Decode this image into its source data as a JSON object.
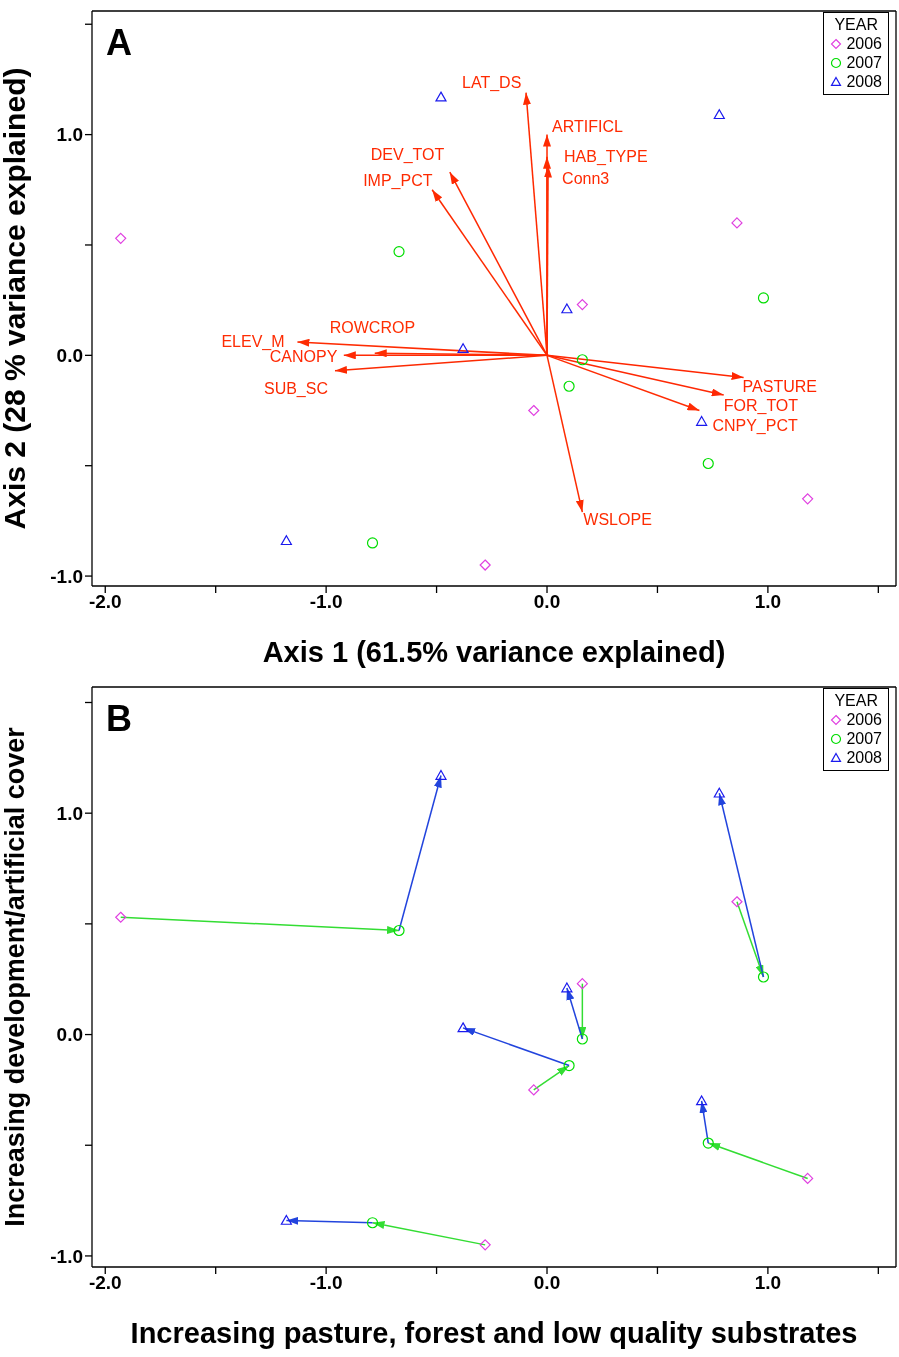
{
  "chart_data": [
    {
      "type": "scatter",
      "title": "A",
      "xlabel": "Axis 1 (61.5% variance explained)",
      "ylabel": "Axis 2 (28 % variance explained)",
      "legend_title": "YEAR",
      "legend": "top right",
      "grid": false,
      "xlim": [
        -2.06,
        1.58
      ],
      "ylim": [
        -1.045,
        1.56
      ],
      "xticks": [
        {
          "value": -2,
          "label": "-2.0"
        },
        {
          "value": -1.5,
          "label": null
        },
        {
          "value": -1,
          "label": "-1.0"
        },
        {
          "value": -0.5,
          "label": null
        },
        {
          "value": 0,
          "label": "0.0"
        },
        {
          "value": 0.5,
          "label": null
        },
        {
          "value": 1,
          "label": "1.0"
        },
        {
          "value": 1.5,
          "label": null
        }
      ],
      "yticks": [
        {
          "value": -1,
          "label": "-1.0"
        },
        {
          "value": -0.5,
          "label": null
        },
        {
          "value": 0,
          "label": "0.0"
        },
        {
          "value": 0.5,
          "label": null
        },
        {
          "value": 1,
          "label": "1.0"
        },
        {
          "value": 1.5,
          "label": null
        }
      ],
      "series": [
        {
          "type": "scatter",
          "name": "2006",
          "marker": "diamond",
          "color": "#e040e0",
          "x": [
            -1.93,
            0.16,
            0.86,
            -0.06,
            1.18,
            -0.28
          ],
          "values": [
            0.53,
            0.23,
            0.6,
            -0.25,
            -0.65,
            -0.95
          ]
        },
        {
          "type": "scatter",
          "name": "2007",
          "marker": "circle",
          "color": "#00dd00",
          "x": [
            -0.67,
            0.98,
            0.16,
            0.1,
            0.73,
            -0.79
          ],
          "values": [
            0.47,
            0.26,
            -0.02,
            -0.14,
            -0.49,
            -0.85
          ]
        },
        {
          "type": "scatter",
          "name": "2008",
          "marker": "triangle",
          "color": "#1a1aee",
          "x": [
            -0.48,
            0.78,
            0.09,
            -0.38,
            0.7,
            -1.18
          ],
          "values": [
            1.17,
            1.09,
            0.21,
            0.03,
            -0.3,
            -0.84
          ]
        },
        {
          "type": "line",
          "name": "LAT_DS",
          "color": "#ff2a00",
          "x": [
            0,
            -0.095
          ],
          "values": [
            0,
            1.19
          ]
        },
        {
          "type": "line",
          "name": "ARTIFICL",
          "color": "#ff2a02",
          "x": [
            0,
            0
          ],
          "values": [
            0,
            1.0
          ]
        },
        {
          "type": "line",
          "name": "HAB_TYPE",
          "color": "#ff2c00",
          "x": [
            0,
            0
          ],
          "values": [
            0,
            0.9
          ]
        },
        {
          "type": "line",
          "name": "Conn3",
          "color": "#fe2a04",
          "x": [
            0,
            0.005
          ],
          "values": [
            0,
            0.86
          ]
        },
        {
          "type": "line",
          "name": "DEV_TOT",
          "color": "#ff2802",
          "x": [
            0,
            -0.44
          ],
          "values": [
            0,
            0.83
          ]
        },
        {
          "type": "line",
          "name": "IMP_PCT",
          "color": "#fd2a00",
          "x": [
            0,
            -0.52
          ],
          "values": [
            0,
            0.75
          ]
        },
        {
          "type": "line",
          "name": "ROWCROP",
          "color": "#ff2e02",
          "x": [
            0,
            -0.78
          ],
          "values": [
            0,
            0.01
          ]
        },
        {
          "type": "line",
          "name": "ELEV_M",
          "color": "#fe2c03",
          "x": [
            0,
            -1.13
          ],
          "values": [
            0,
            0.06
          ]
        },
        {
          "type": "line",
          "name": "CANOPY",
          "color": "#ff2a05",
          "x": [
            0,
            -0.92
          ],
          "values": [
            0,
            0.0
          ]
        },
        {
          "type": "line",
          "name": "SUB_SC",
          "color": "#fc2a02",
          "x": [
            0,
            -0.96
          ],
          "values": [
            0,
            -0.07
          ]
        },
        {
          "type": "line",
          "name": "PASTURE",
          "color": "#ff2600",
          "x": [
            0,
            0.89
          ],
          "values": [
            0,
            -0.1
          ]
        },
        {
          "type": "line",
          "name": "FOR_TOT",
          "color": "#fe2804",
          "x": [
            0,
            0.8
          ],
          "values": [
            0,
            -0.18
          ]
        },
        {
          "type": "line",
          "name": "CNPY_PCT",
          "color": "#ff2c04",
          "x": [
            0,
            0.69
          ],
          "values": [
            0,
            -0.25
          ]
        },
        {
          "type": "line",
          "name": "WSLOPE",
          "color": "#fd2c02",
          "x": [
            0,
            0.16
          ],
          "values": [
            0,
            -0.71
          ]
        }
      ]
    },
    {
      "type": "scatter",
      "title": "B",
      "xlabel": "Increasing pasture, forest and low quality substrates",
      "ylabel": "Increasing development/artificial cover",
      "legend_title": "YEAR",
      "legend": "top right",
      "grid": false,
      "xlim": [
        -2.06,
        1.58
      ],
      "ylim": [
        -1.05,
        1.57
      ],
      "xticks": [
        {
          "value": -2,
          "label": "-2.0"
        },
        {
          "value": -1.5,
          "label": null
        },
        {
          "value": -1,
          "label": "-1.0"
        },
        {
          "value": -0.5,
          "label": null
        },
        {
          "value": 0,
          "label": "0.0"
        },
        {
          "value": 0.5,
          "label": null
        },
        {
          "value": 1,
          "label": "1.0"
        },
        {
          "value": 1.5,
          "label": null
        }
      ],
      "yticks": [
        {
          "value": -1,
          "label": "-1.0"
        },
        {
          "value": -0.5,
          "label": null
        },
        {
          "value": 0,
          "label": "0.0"
        },
        {
          "value": 0.5,
          "label": null
        },
        {
          "value": 1,
          "label": "1.0"
        },
        {
          "value": 1.5,
          "label": null
        }
      ],
      "series": [
        {
          "type": "line",
          "color": "#33dd33",
          "x": [
            -1.93,
            -0.67
          ],
          "values": [
            0.53,
            0.47
          ]
        },
        {
          "type": "line",
          "color": "#33dd33",
          "x": [
            0.86,
            0.98
          ],
          "values": [
            0.6,
            0.26
          ]
        },
        {
          "type": "line",
          "color": "#33dd33",
          "x": [
            0.16,
            0.16
          ],
          "values": [
            0.23,
            -0.02
          ]
        },
        {
          "type": "line",
          "color": "#33dd33",
          "x": [
            -0.06,
            0.1
          ],
          "values": [
            -0.25,
            -0.14
          ]
        },
        {
          "type": "line",
          "color": "#33dd33",
          "x": [
            1.18,
            0.73
          ],
          "values": [
            -0.65,
            -0.49
          ]
        },
        {
          "type": "line",
          "color": "#33dd33",
          "x": [
            -0.28,
            -0.79
          ],
          "values": [
            -0.95,
            -0.85
          ]
        },
        {
          "type": "line",
          "color": "#2244dd",
          "x": [
            -0.67,
            -0.48
          ],
          "values": [
            0.47,
            1.17
          ]
        },
        {
          "type": "line",
          "color": "#2244dd",
          "x": [
            0.98,
            0.78
          ],
          "values": [
            0.26,
            1.09
          ]
        },
        {
          "type": "line",
          "color": "#2244dd",
          "x": [
            0.16,
            0.09
          ],
          "values": [
            -0.02,
            0.21
          ]
        },
        {
          "type": "line",
          "color": "#2244dd",
          "x": [
            0.1,
            -0.38
          ],
          "values": [
            -0.14,
            0.03
          ]
        },
        {
          "type": "line",
          "color": "#2244dd",
          "x": [
            0.73,
            0.7
          ],
          "values": [
            -0.49,
            -0.3
          ]
        },
        {
          "type": "line",
          "color": "#2244dd",
          "x": [
            -0.79,
            -1.18
          ],
          "values": [
            -0.85,
            -0.84
          ]
        },
        {
          "type": "scatter",
          "name": "2006",
          "marker": "diamond",
          "color": "#e040e0",
          "x": [
            -1.93,
            0.16,
            0.86,
            -0.06,
            1.18,
            -0.28
          ],
          "values": [
            0.53,
            0.23,
            0.6,
            -0.25,
            -0.65,
            -0.95
          ]
        },
        {
          "type": "scatter",
          "name": "2007",
          "marker": "circle",
          "color": "#00dd00",
          "x": [
            -0.67,
            0.98,
            0.16,
            0.1,
            0.73,
            -0.79
          ],
          "values": [
            0.47,
            0.26,
            -0.02,
            -0.14,
            -0.49,
            -0.85
          ]
        },
        {
          "type": "scatter",
          "name": "2008",
          "marker": "triangle",
          "color": "#1a1aee",
          "x": [
            -0.48,
            0.78,
            0.09,
            -0.38,
            0.7,
            -1.18
          ],
          "values": [
            1.17,
            1.09,
            0.21,
            0.03,
            -0.3,
            -0.84
          ]
        }
      ]
    }
  ]
}
